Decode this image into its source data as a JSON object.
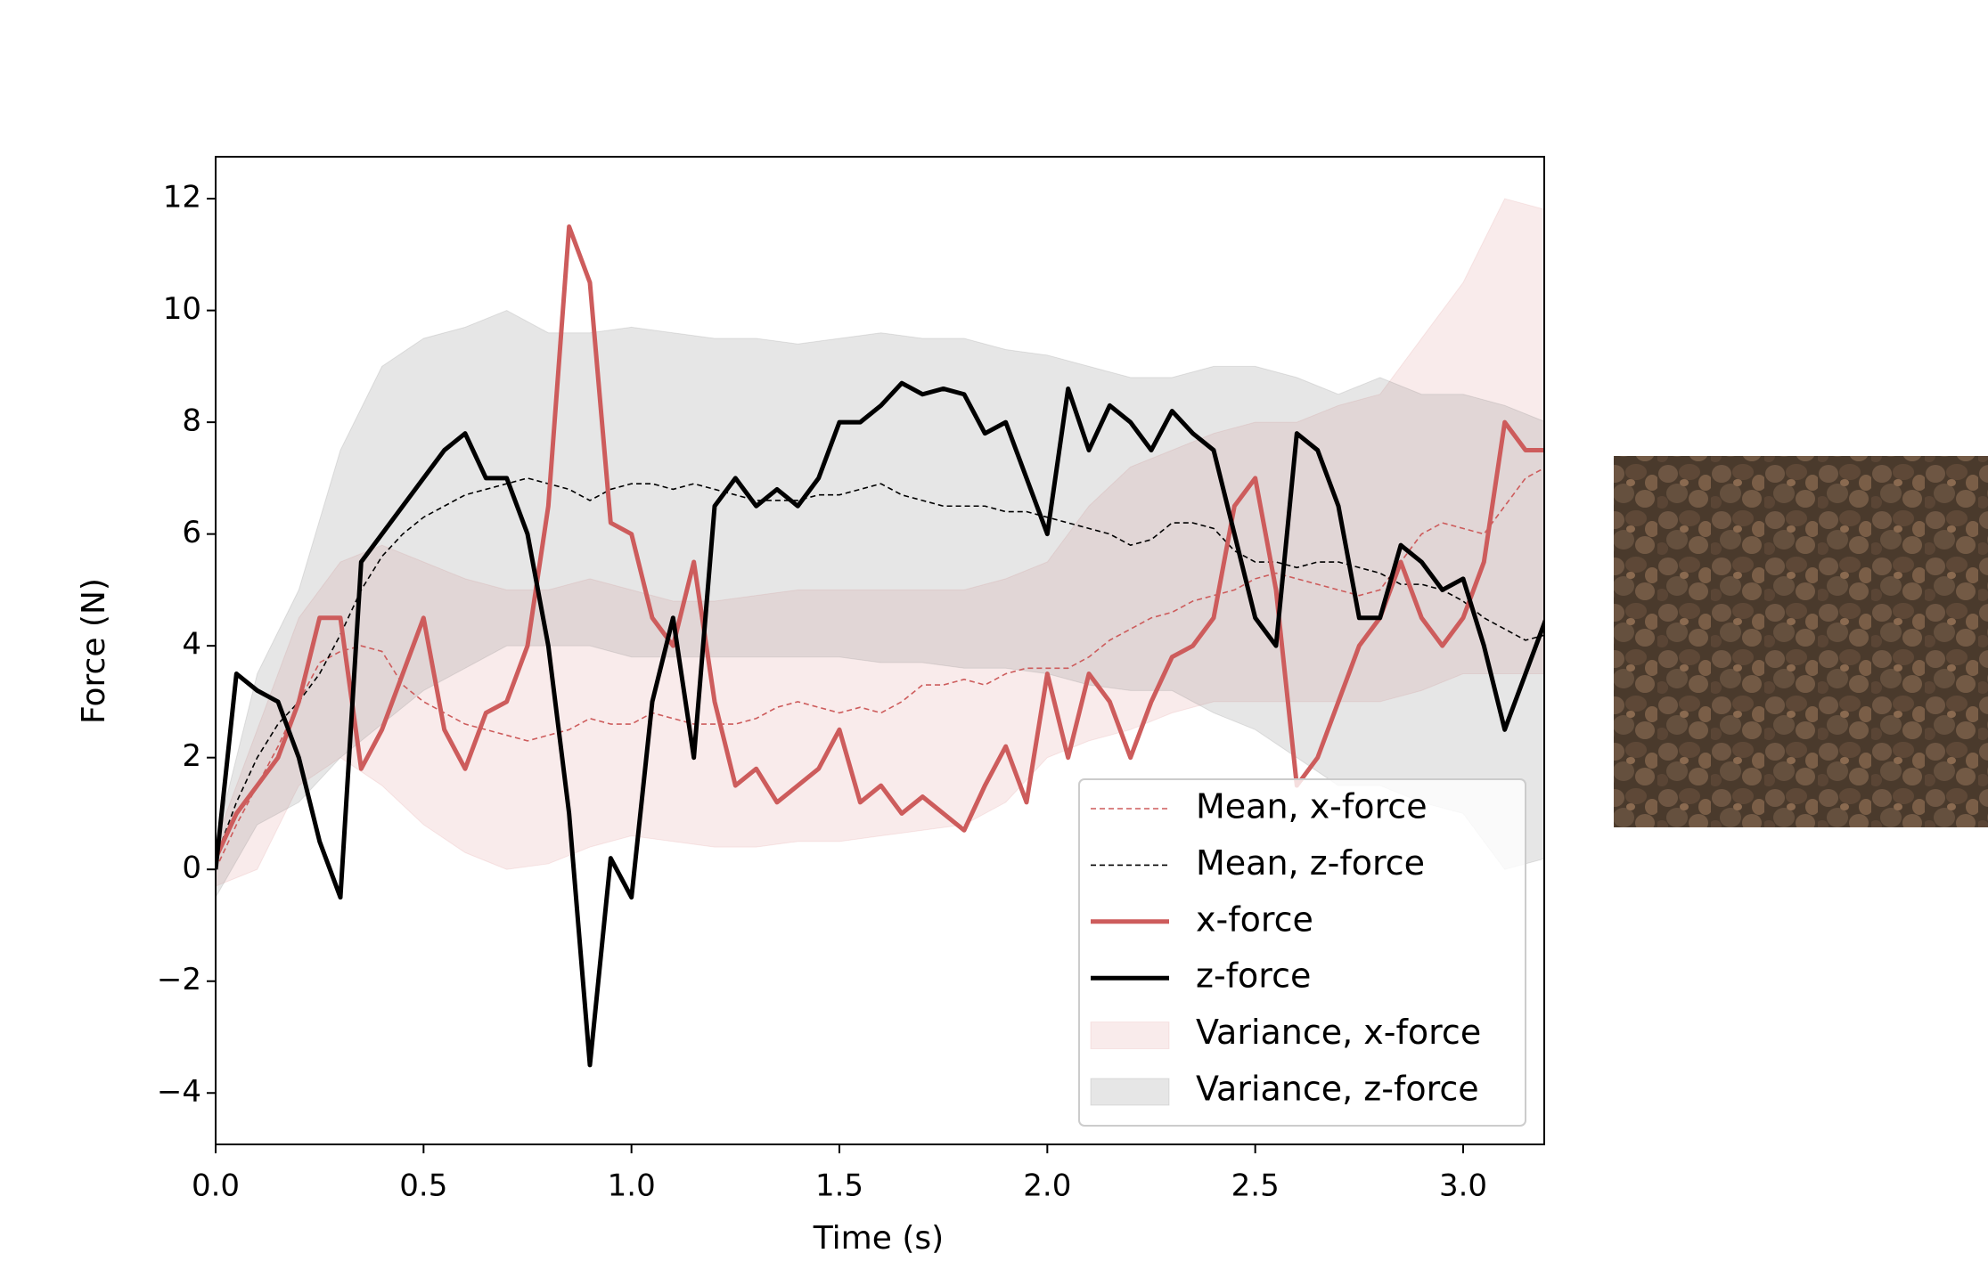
{
  "chart_data": {
    "type": "line",
    "x_label": "Time (s)",
    "y_label": "Force (N)",
    "xlim": [
      0,
      3.195
    ],
    "ylim": [
      -4.92,
      12.75
    ],
    "xticks": [
      {
        "value": 0,
        "label": "0.0"
      },
      0.5,
      {
        "value": 1,
        "label": "1.0"
      },
      1.5,
      {
        "value": 2,
        "label": "2.0"
      },
      2.5,
      {
        "value": 3,
        "label": "3.0"
      }
    ],
    "yticks": [
      {
        "value": -4,
        "label": "−4"
      },
      {
        "value": -2,
        "label": "−2"
      },
      0,
      2,
      4,
      6,
      8,
      10,
      12
    ],
    "legend": "lower right",
    "x": [
      0,
      0.05,
      0.1,
      0.15,
      0.2,
      0.25,
      0.3,
      0.35,
      0.4,
      0.45,
      0.5,
      0.55,
      0.6,
      0.65,
      0.7,
      0.75,
      0.8,
      0.85,
      0.9,
      0.95,
      1.0,
      1.05,
      1.1,
      1.15,
      1.2,
      1.25,
      1.3,
      1.35,
      1.4,
      1.45,
      1.5,
      1.55,
      1.6,
      1.65,
      1.7,
      1.75,
      1.8,
      1.85,
      1.9,
      1.95,
      2.0,
      2.05,
      2.1,
      2.15,
      2.2,
      2.25,
      2.3,
      2.35,
      2.4,
      2.45,
      2.5,
      2.55,
      2.6,
      2.65,
      2.7,
      2.75,
      2.8,
      2.85,
      2.9,
      2.95,
      3.0,
      3.05,
      3.1,
      3.15,
      3.2
    ],
    "series": [
      {
        "name": "Mean, x-force",
        "kind": "line",
        "dash": true,
        "color": "#cd5c5c",
        "values": [
          0,
          0.8,
          1.5,
          2.2,
          3.0,
          3.7,
          3.9,
          4.0,
          3.9,
          3.3,
          3.0,
          2.8,
          2.6,
          2.5,
          2.4,
          2.3,
          2.4,
          2.5,
          2.7,
          2.6,
          2.6,
          2.8,
          2.7,
          2.6,
          2.6,
          2.6,
          2.7,
          2.9,
          3.0,
          2.9,
          2.8,
          2.9,
          2.8,
          3.0,
          3.3,
          3.3,
          3.4,
          3.3,
          3.5,
          3.6,
          3.6,
          3.6,
          3.8,
          4.1,
          4.3,
          4.5,
          4.6,
          4.8,
          4.9,
          5.0,
          5.2,
          5.3,
          5.2,
          5.1,
          5.0,
          4.9,
          5.0,
          5.5,
          6.0,
          6.2,
          6.1,
          6.0,
          6.5,
          7.0,
          7.2
        ]
      },
      {
        "name": "Mean, z-force",
        "kind": "line",
        "dash": true,
        "color": "#000000",
        "values": [
          0.2,
          1.2,
          2.0,
          2.6,
          3.0,
          3.5,
          4.2,
          5.0,
          5.6,
          6.0,
          6.3,
          6.5,
          6.7,
          6.8,
          6.9,
          7.0,
          6.9,
          6.8,
          6.6,
          6.8,
          6.9,
          6.9,
          6.8,
          6.9,
          6.8,
          6.7,
          6.6,
          6.6,
          6.6,
          6.7,
          6.7,
          6.8,
          6.9,
          6.7,
          6.6,
          6.5,
          6.5,
          6.5,
          6.4,
          6.4,
          6.3,
          6.2,
          6.1,
          6.0,
          5.8,
          5.9,
          6.2,
          6.2,
          6.1,
          5.7,
          5.5,
          5.5,
          5.4,
          5.5,
          5.5,
          5.4,
          5.3,
          5.1,
          5.1,
          5.0,
          4.8,
          4.5,
          4.3,
          4.1,
          4.2
        ]
      },
      {
        "name": "x-force",
        "kind": "line",
        "dash": false,
        "color": "#cd5c5c",
        "values": [
          0.2,
          1.0,
          1.5,
          2.0,
          3.0,
          4.5,
          4.5,
          1.8,
          2.5,
          3.5,
          4.5,
          2.5,
          1.8,
          2.8,
          3.0,
          4.0,
          6.5,
          11.5,
          10.5,
          6.2,
          6.0,
          4.5,
          4.0,
          5.5,
          3.0,
          1.5,
          1.8,
          1.2,
          1.5,
          1.8,
          2.5,
          1.2,
          1.5,
          1.0,
          1.3,
          1.0,
          0.7,
          1.5,
          2.2,
          1.2,
          3.5,
          2.0,
          3.5,
          3.0,
          2.0,
          3.0,
          3.8,
          4.0,
          4.5,
          6.5,
          7.0,
          5.0,
          1.5,
          2.0,
          3.0,
          4.0,
          4.5,
          5.5,
          4.5,
          4.0,
          4.5,
          5.5,
          8.0,
          7.5,
          7.5
        ]
      },
      {
        "name": "z-force",
        "kind": "line",
        "dash": false,
        "color": "#000000",
        "values": [
          0,
          3.5,
          3.2,
          3.0,
          2.0,
          0.5,
          -0.5,
          5.5,
          6.0,
          6.5,
          7.0,
          7.5,
          7.8,
          7.0,
          7.0,
          6.0,
          4.0,
          1.0,
          -3.5,
          0.2,
          -0.5,
          3.0,
          4.5,
          2.0,
          6.5,
          7.0,
          6.5,
          6.8,
          6.5,
          7.0,
          8.0,
          8.0,
          8.3,
          8.7,
          8.5,
          8.6,
          8.5,
          7.8,
          8.0,
          7.0,
          6.0,
          8.6,
          7.5,
          8.3,
          8.0,
          7.5,
          8.2,
          7.8,
          7.5,
          6.0,
          4.5,
          4.0,
          7.8,
          7.5,
          6.5,
          4.5,
          4.5,
          5.8,
          5.5,
          5.0,
          5.2,
          4.0,
          2.5,
          3.5,
          4.5
        ]
      },
      {
        "name": "Variance, x-force",
        "kind": "band",
        "color": "#cd5c5c",
        "alpha": 0.12,
        "x": [
          0,
          0.1,
          0.2,
          0.3,
          0.4,
          0.5,
          0.6,
          0.7,
          0.8,
          0.9,
          1.0,
          1.1,
          1.2,
          1.3,
          1.4,
          1.5,
          1.6,
          1.7,
          1.8,
          1.9,
          2.0,
          2.1,
          2.2,
          2.3,
          2.4,
          2.5,
          2.6,
          2.7,
          2.8,
          2.9,
          3.0,
          3.1,
          3.2
        ],
        "lower": [
          -0.3,
          0,
          1.5,
          2.0,
          1.5,
          0.8,
          0.3,
          0,
          0.1,
          0.4,
          0.6,
          0.5,
          0.4,
          0.4,
          0.5,
          0.5,
          0.6,
          0.7,
          0.8,
          1.2,
          2.0,
          2.3,
          2.5,
          2.8,
          3.0,
          3.0,
          3.0,
          3.0,
          3.0,
          3.2,
          3.5,
          3.5,
          3.5
        ],
        "upper": [
          0.5,
          2.5,
          4.5,
          5.5,
          5.8,
          5.5,
          5.2,
          5.0,
          5.0,
          5.2,
          5.0,
          4.8,
          4.8,
          4.9,
          5.0,
          5.0,
          5.0,
          5.0,
          5.0,
          5.2,
          5.5,
          6.5,
          7.2,
          7.5,
          7.8,
          8.0,
          8.0,
          8.3,
          8.5,
          9.5,
          10.5,
          12.0,
          11.8
        ]
      },
      {
        "name": "Variance, z-force",
        "kind": "band",
        "color": "#808080",
        "alpha": 0.2,
        "x": [
          0,
          0.1,
          0.2,
          0.3,
          0.4,
          0.5,
          0.6,
          0.7,
          0.8,
          0.9,
          1.0,
          1.1,
          1.2,
          1.3,
          1.4,
          1.5,
          1.6,
          1.7,
          1.8,
          1.9,
          2.0,
          2.1,
          2.2,
          2.3,
          2.4,
          2.5,
          2.6,
          2.7,
          2.8,
          2.9,
          3.0,
          3.1,
          3.2
        ],
        "lower": [
          -0.5,
          0.8,
          1.2,
          2.0,
          2.6,
          3.2,
          3.6,
          4.0,
          4.0,
          4.0,
          3.8,
          3.8,
          3.8,
          3.8,
          3.8,
          3.8,
          3.7,
          3.7,
          3.6,
          3.6,
          3.5,
          3.3,
          3.2,
          3.2,
          2.8,
          2.5,
          2.0,
          1.5,
          1.5,
          1.2,
          1.0,
          0,
          0.2
        ],
        "upper": [
          0.5,
          3.5,
          5.0,
          7.5,
          9.0,
          9.5,
          9.7,
          10.0,
          9.6,
          9.6,
          9.7,
          9.6,
          9.5,
          9.5,
          9.4,
          9.5,
          9.6,
          9.5,
          9.5,
          9.3,
          9.2,
          9.0,
          8.8,
          8.8,
          9.0,
          9.0,
          8.8,
          8.5,
          8.8,
          8.5,
          8.5,
          8.3,
          8.0
        ]
      }
    ]
  }
}
